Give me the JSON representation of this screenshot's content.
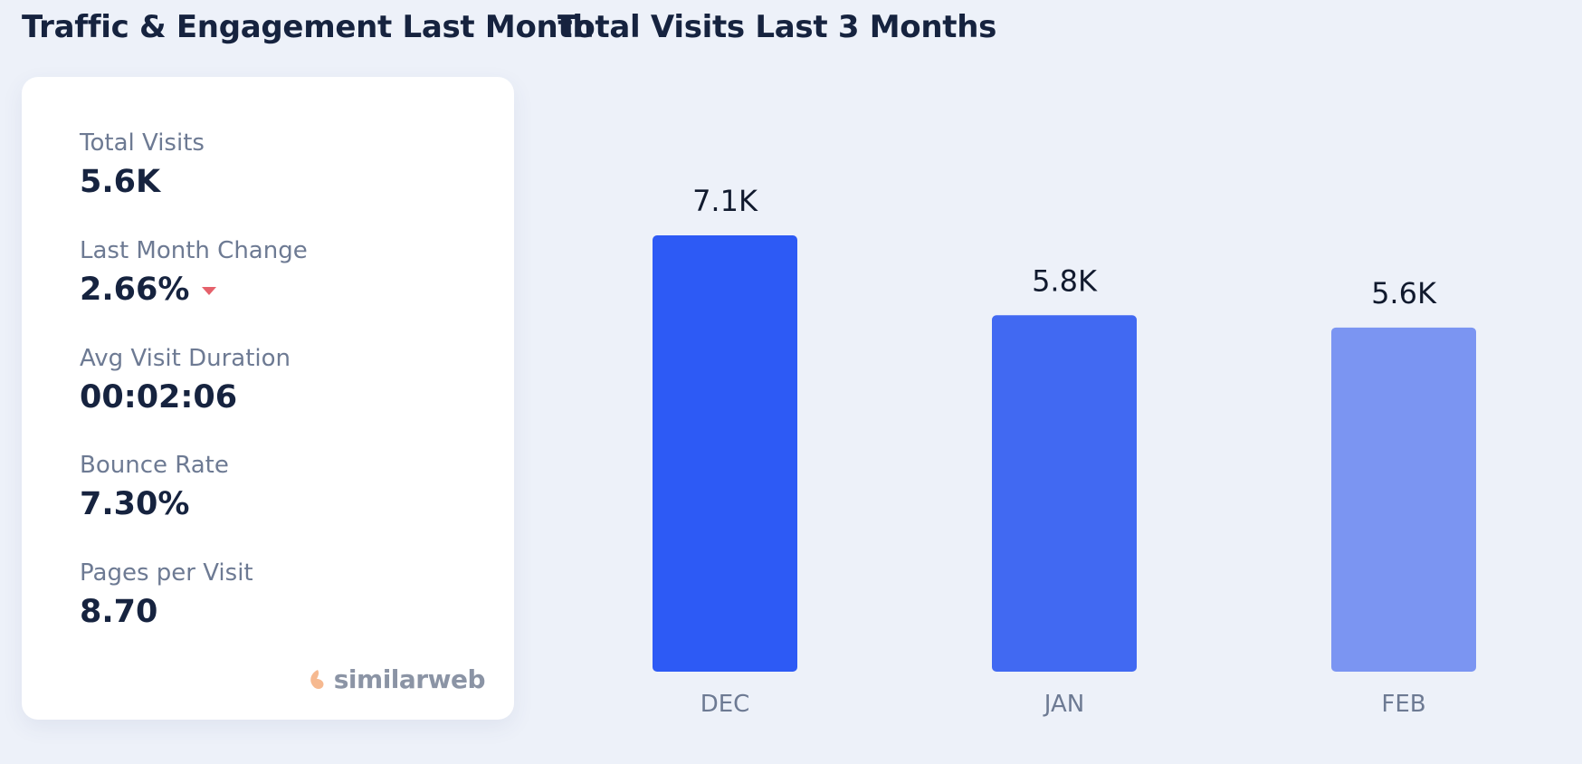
{
  "left_panel": {
    "title": "Traffic & Engagement Last Month",
    "metrics": [
      {
        "label": "Total Visits",
        "value": "5.6K"
      },
      {
        "label": "Last Month Change",
        "value": "2.66%",
        "trend": "down"
      },
      {
        "label": "Avg Visit Duration",
        "value": "00:02:06"
      },
      {
        "label": "Bounce Rate",
        "value": "7.30%"
      },
      {
        "label": "Pages per Visit",
        "value": "8.70"
      }
    ],
    "brand": {
      "text": "similarweb",
      "icon": "similarweb-logo-icon"
    }
  },
  "right_panel": {
    "title": "Total Visits Last 3 Months"
  },
  "chart_data": {
    "type": "bar",
    "title": "Total Visits Last 3 Months",
    "categories": [
      "DEC",
      "JAN",
      "FEB"
    ],
    "values": [
      7100,
      5800,
      5600
    ],
    "data_labels": [
      "7.1K",
      "5.8K",
      "5.6K"
    ],
    "colors": [
      "#2d5af5",
      "#4169f2",
      "#7b95f2"
    ],
    "ylim": [
      0,
      7100
    ],
    "grid": false,
    "xlabel": "",
    "ylabel": ""
  },
  "colors": {
    "background": "#edf1f9",
    "card": "#ffffff",
    "text_primary": "#16233f",
    "text_secondary": "#6d7a93",
    "trend_down": "#e5616b",
    "brand_gray": "#8b94a5",
    "brand_orange": "#f6b990"
  }
}
